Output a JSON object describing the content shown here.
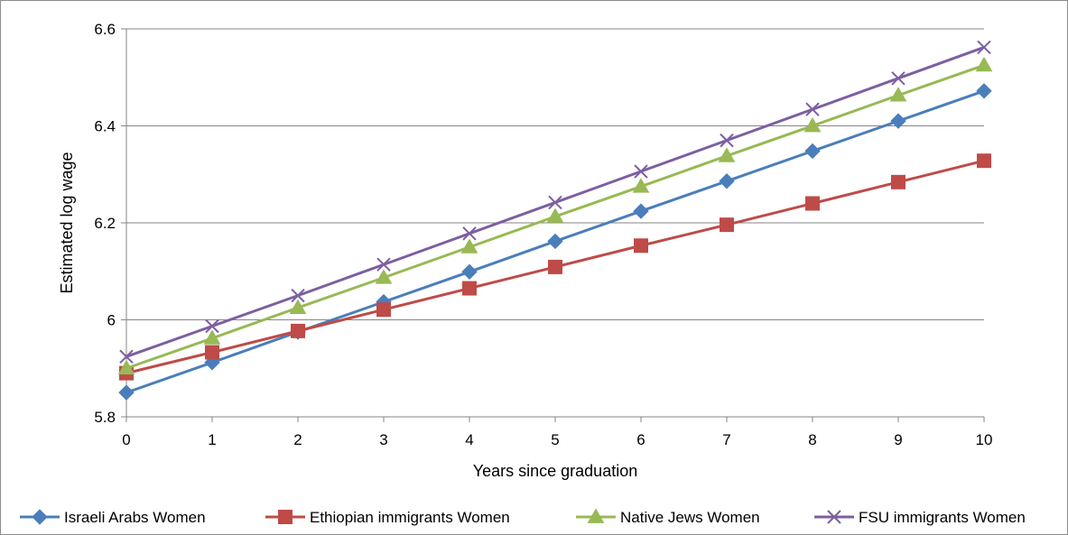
{
  "chart_data": {
    "type": "line",
    "title": "",
    "xlabel": "Years since graduation",
    "ylabel": "Estimated log wage",
    "x": [
      0,
      1,
      2,
      3,
      4,
      5,
      6,
      7,
      8,
      9,
      10
    ],
    "xlim": [
      0,
      10
    ],
    "ylim": [
      5.8,
      6.6
    ],
    "yticks": [
      "5.8",
      "6",
      "6.2",
      "6.4",
      "6.6"
    ],
    "xticks": [
      "0",
      "1",
      "2",
      "3",
      "4",
      "5",
      "6",
      "7",
      "8",
      "9",
      "10"
    ],
    "grid": "horizontal",
    "legend_position": "bottom",
    "series": [
      {
        "name": "Israeli Arabs Women",
        "color": "#4a7ebb",
        "marker": "diamond",
        "values": [
          5.85,
          5.912,
          5.975,
          6.037,
          6.099,
          6.162,
          6.224,
          6.286,
          6.348,
          6.41,
          6.472
        ]
      },
      {
        "name": "Ethiopian immigrants Women",
        "color": "#be4b48",
        "marker": "square",
        "values": [
          5.89,
          5.933,
          5.977,
          6.021,
          6.065,
          6.109,
          6.153,
          6.196,
          6.24,
          6.284,
          6.328
        ]
      },
      {
        "name": "Native Jews Women",
        "color": "#98b954",
        "marker": "triangle",
        "values": [
          5.9,
          5.962,
          6.025,
          6.087,
          6.15,
          6.213,
          6.275,
          6.338,
          6.4,
          6.463,
          6.525
        ]
      },
      {
        "name": "FSU immigrants Women",
        "color": "#7d5fa0",
        "marker": "x",
        "values": [
          5.924,
          5.987,
          6.05,
          6.114,
          6.178,
          6.242,
          6.306,
          6.37,
          6.434,
          6.498,
          6.562
        ]
      }
    ]
  }
}
